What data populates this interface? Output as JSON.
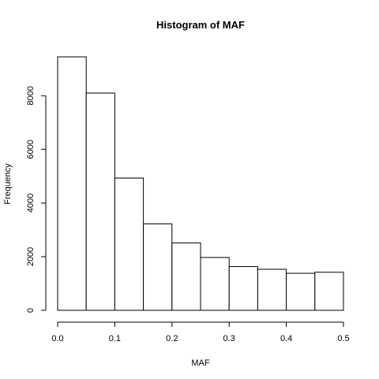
{
  "chart_data": {
    "type": "bar",
    "title": "Histogram of MAF",
    "xlabel": "MAF",
    "ylabel": "Frequency",
    "bin_edges": [
      0.0,
      0.05,
      0.1,
      0.15,
      0.2,
      0.25,
      0.3,
      0.35,
      0.4,
      0.45,
      0.5
    ],
    "values": [
      9450,
      8100,
      4930,
      3220,
      2510,
      1970,
      1630,
      1530,
      1380,
      1420
    ],
    "xlim": [
      0.0,
      0.5
    ],
    "ylim": [
      0,
      9450
    ],
    "x_ticks": [
      0.0,
      0.1,
      0.2,
      0.3,
      0.4,
      0.5
    ],
    "x_tick_labels": [
      "0.0",
      "0.1",
      "0.2",
      "0.3",
      "0.4",
      "0.5"
    ],
    "y_ticks": [
      0,
      2000,
      4000,
      6000,
      8000
    ],
    "y_tick_labels": [
      "0",
      "2000",
      "4000",
      "6000",
      "8000"
    ],
    "grid": false,
    "legend": "none"
  }
}
